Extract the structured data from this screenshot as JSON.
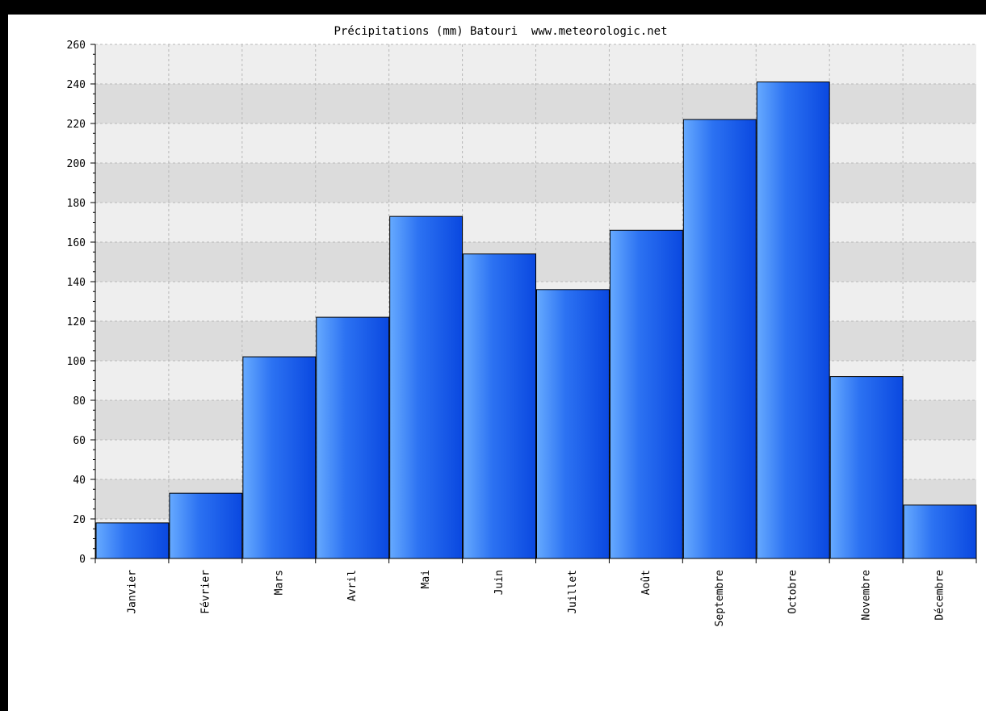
{
  "chart_data": {
    "type": "bar",
    "title": "Précipitations (mm) Batouri  www.meteorologic.net",
    "xlabel": "",
    "ylabel": "",
    "categories": [
      "Janvier",
      "Février",
      "Mars",
      "Avril",
      "Mai",
      "Juin",
      "Juillet",
      "Août",
      "Septembre",
      "Octobre",
      "Novembre",
      "Décembre"
    ],
    "values": [
      18,
      33,
      102,
      122,
      173,
      154,
      136,
      166,
      222,
      241,
      92,
      27
    ],
    "ylim": [
      0,
      260
    ],
    "yticks": [
      0,
      20,
      40,
      60,
      80,
      100,
      120,
      140,
      160,
      180,
      200,
      220,
      240,
      260
    ],
    "grid": true,
    "legend": "none",
    "colors": {
      "bar_light": "#66aaff",
      "bar_dark": "#0a48e0",
      "band_light": "#eeeeee",
      "band_dark": "#dcdcdc",
      "frame": "#000000",
      "background": "#ffffff"
    }
  }
}
